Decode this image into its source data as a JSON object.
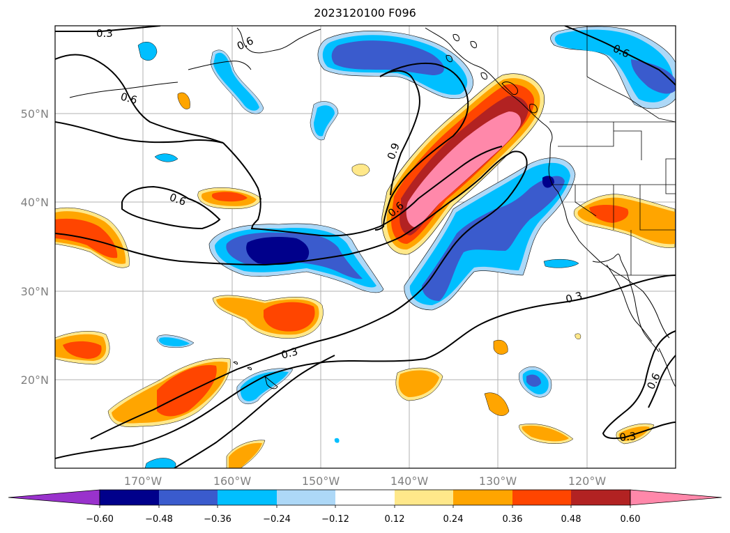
{
  "title": "2023120100 F096",
  "map": {
    "lat_labels": [
      "50°N",
      "40°N",
      "30°N",
      "20°N"
    ],
    "lon_labels": [
      "170°W",
      "160°W",
      "150°W",
      "140°W",
      "130°W",
      "120°W"
    ],
    "contour_labels": [
      "0.3",
      "0.6",
      "0.6",
      "0.6",
      "0.9",
      "0.6",
      "0.6",
      "0.3",
      "0.3",
      "0.6",
      "0.3"
    ]
  },
  "colorbar": {
    "ticks": [
      "−0.60",
      "−0.48",
      "−0.36",
      "−0.24",
      "−0.12",
      "0.12",
      "0.24",
      "0.36",
      "0.48",
      "0.60"
    ],
    "colors": [
      "#9932cc",
      "#00008b",
      "#3a5bcd",
      "#00bfff",
      "#add8f7",
      "#ffffff",
      "#ffe88a",
      "#ffa500",
      "#ff4500",
      "#b22222",
      "#ff88aa"
    ]
  },
  "legend_colors": {
    "neg1": "#add8f7",
    "neg2": "#00bfff",
    "neg3": "#3a5bcd",
    "neg4": "#00008b",
    "pos1": "#ffe88a",
    "pos2": "#ffa500",
    "pos3": "#ff4500",
    "pos4": "#b22222",
    "pos5": "#ff88aa"
  }
}
